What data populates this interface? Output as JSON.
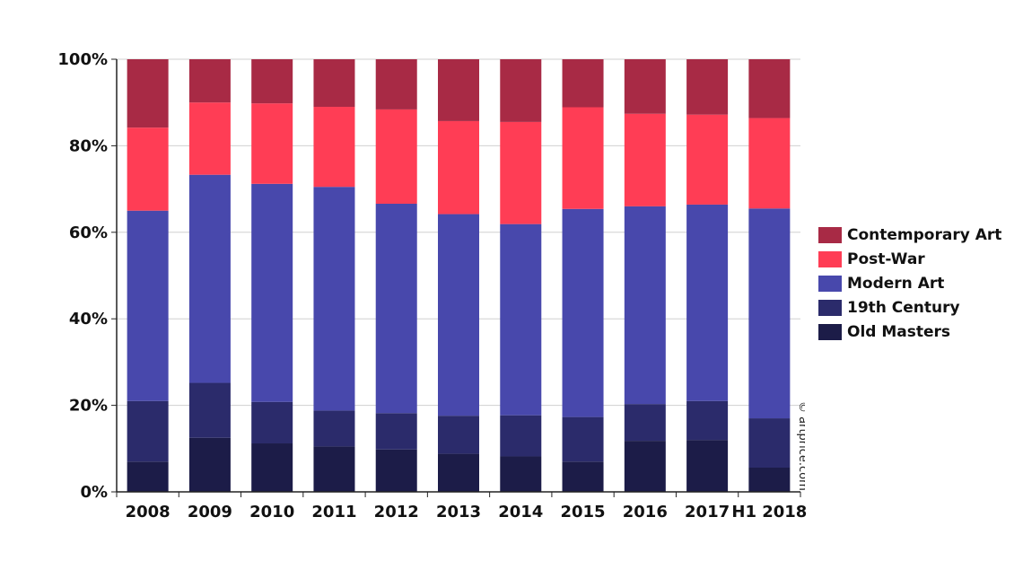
{
  "chart_data": {
    "type": "bar",
    "stacked": true,
    "categories": [
      "2008",
      "2009",
      "2010",
      "2011",
      "2012",
      "2013",
      "2014",
      "2015",
      "2016",
      "2017",
      "H1 2018"
    ],
    "series": [
      {
        "name": "Old Masters",
        "color": "#1c1c48",
        "values": [
          7,
          12.5,
          11.2,
          10.5,
          9.8,
          8.8,
          8.2,
          7,
          11.8,
          12,
          5.6
        ]
      },
      {
        "name": "19th Century",
        "color": "#2b2b6b",
        "values": [
          14,
          12.7,
          9.6,
          8.3,
          8.4,
          8.8,
          9.5,
          10.3,
          8.5,
          9,
          11.4
        ]
      },
      {
        "name": "Modern Art",
        "color": "#4848ac",
        "values": [
          44,
          48.1,
          50.4,
          51.7,
          48.4,
          46.6,
          44.2,
          48.1,
          45.7,
          45.4,
          48.5
        ]
      },
      {
        "name": "Post-War",
        "color": "#ff3d55",
        "values": [
          19.2,
          16.7,
          18.6,
          18.5,
          21.8,
          21.5,
          23.6,
          23.5,
          21.4,
          20.8,
          20.9
        ]
      },
      {
        "name": "Contemporary Art",
        "color": "#a82a45",
        "values": [
          15.8,
          10,
          10.2,
          11,
          11.6,
          14.3,
          14.5,
          11.1,
          12.6,
          12.8,
          13.6
        ]
      }
    ],
    "yticks": [
      "0%",
      "20%",
      "40%",
      "60%",
      "80%",
      "100%"
    ],
    "ylim": [
      0,
      100
    ],
    "legend_position": "right",
    "legend_order": [
      "Contemporary Art",
      "Post-War",
      "Modern Art",
      "19th Century",
      "Old Masters"
    ],
    "grid": true
  },
  "credit": "© artprice.com"
}
